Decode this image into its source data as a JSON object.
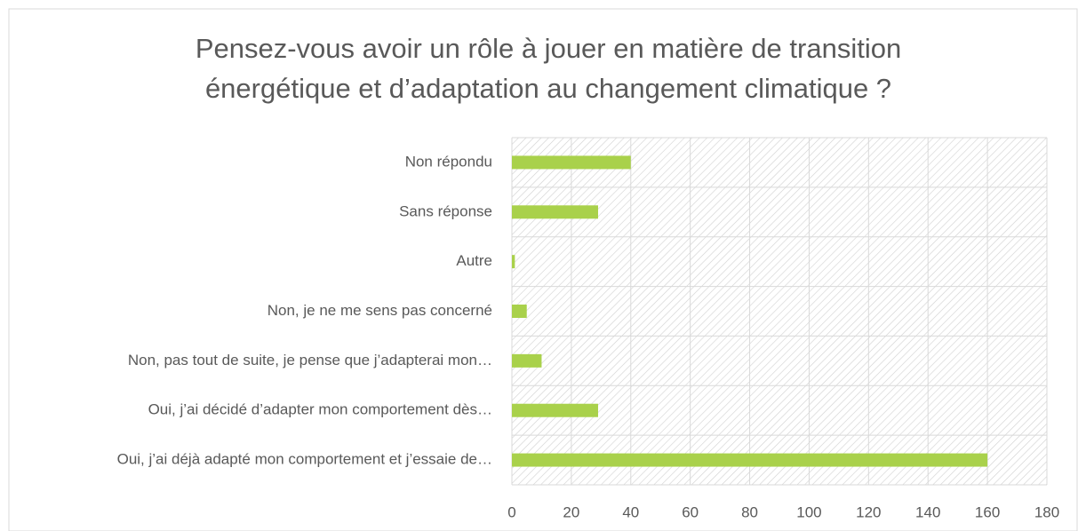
{
  "chart_data": {
    "type": "barh",
    "title": [
      "Pensez-vous avoir un rôle à jouer en matière de transition",
      "énergétique et d’adaptation au changement climatique ?"
    ],
    "categories": [
      "Non répondu",
      "Sans réponse",
      "Autre",
      "Non, je ne me sens pas concerné",
      "Non, pas tout de suite, je pense que j’adapterai mon…",
      "Oui, j’ai décidé d’adapter mon comportement dès…",
      "Oui, j’ai déjà adapté mon comportement et j’essaie de…"
    ],
    "values": [
      40,
      29,
      1,
      5,
      10,
      29,
      160
    ],
    "color": "#a9d14b",
    "xlim": [
      0,
      180
    ],
    "xticks": [
      0,
      20,
      40,
      60,
      80,
      100,
      120,
      140,
      160,
      180
    ],
    "grid": true
  }
}
